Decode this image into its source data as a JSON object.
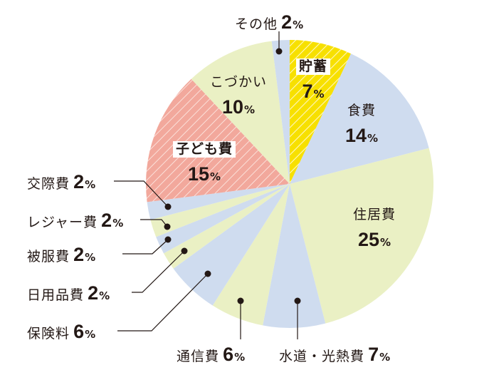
{
  "chart_data": {
    "type": "pie",
    "title": "",
    "start_angle_deg": 0,
    "direction": "clockwise",
    "categories": [
      "貯蓄",
      "食費",
      "住居費",
      "水道・光熱費",
      "通信費",
      "保険料",
      "日用品費",
      "被服費",
      "レジャー費",
      "交際費",
      "子ども費",
      "こづかい",
      "その他"
    ],
    "values": [
      7,
      14,
      25,
      7,
      6,
      6,
      2,
      2,
      2,
      2,
      15,
      10,
      2
    ],
    "unit": "%",
    "colors": [
      "#f7e000",
      "#cfdcef",
      "#eaf0c4",
      "#cfdcef",
      "#eaf0c4",
      "#cfdcef",
      "#eaf0c4",
      "#cfdcef",
      "#eaf0c4",
      "#cfdcef",
      "#f2a89c",
      "#eaf0c4",
      "#cfdcef"
    ],
    "hatched": [
      "貯蓄",
      "子ども費"
    ]
  },
  "labels": {
    "savings": {
      "name": "貯蓄",
      "value": "7",
      "pct": "%"
    },
    "food": {
      "name": "食費",
      "value": "14",
      "pct": "%"
    },
    "housing": {
      "name": "住居費",
      "value": "25",
      "pct": "%"
    },
    "utilities": {
      "name": "水道・光熱費",
      "value": "7",
      "pct": "%"
    },
    "communication": {
      "name": "通信費",
      "value": "6",
      "pct": "%"
    },
    "insurance": {
      "name": "保険料",
      "value": "6",
      "pct": "%"
    },
    "daily_goods": {
      "name": "日用品費",
      "value": "2",
      "pct": "%"
    },
    "clothing": {
      "name": "被服費",
      "value": "2",
      "pct": "%"
    },
    "leisure": {
      "name": "レジャー費",
      "value": "2",
      "pct": "%"
    },
    "social": {
      "name": "交際費",
      "value": "2",
      "pct": "%"
    },
    "children": {
      "name": "子ども費",
      "value": "15",
      "pct": "%"
    },
    "allowance": {
      "name": "こづかい",
      "value": "10",
      "pct": "%"
    },
    "other": {
      "name": "その他",
      "value": "2",
      "pct": "%"
    }
  }
}
